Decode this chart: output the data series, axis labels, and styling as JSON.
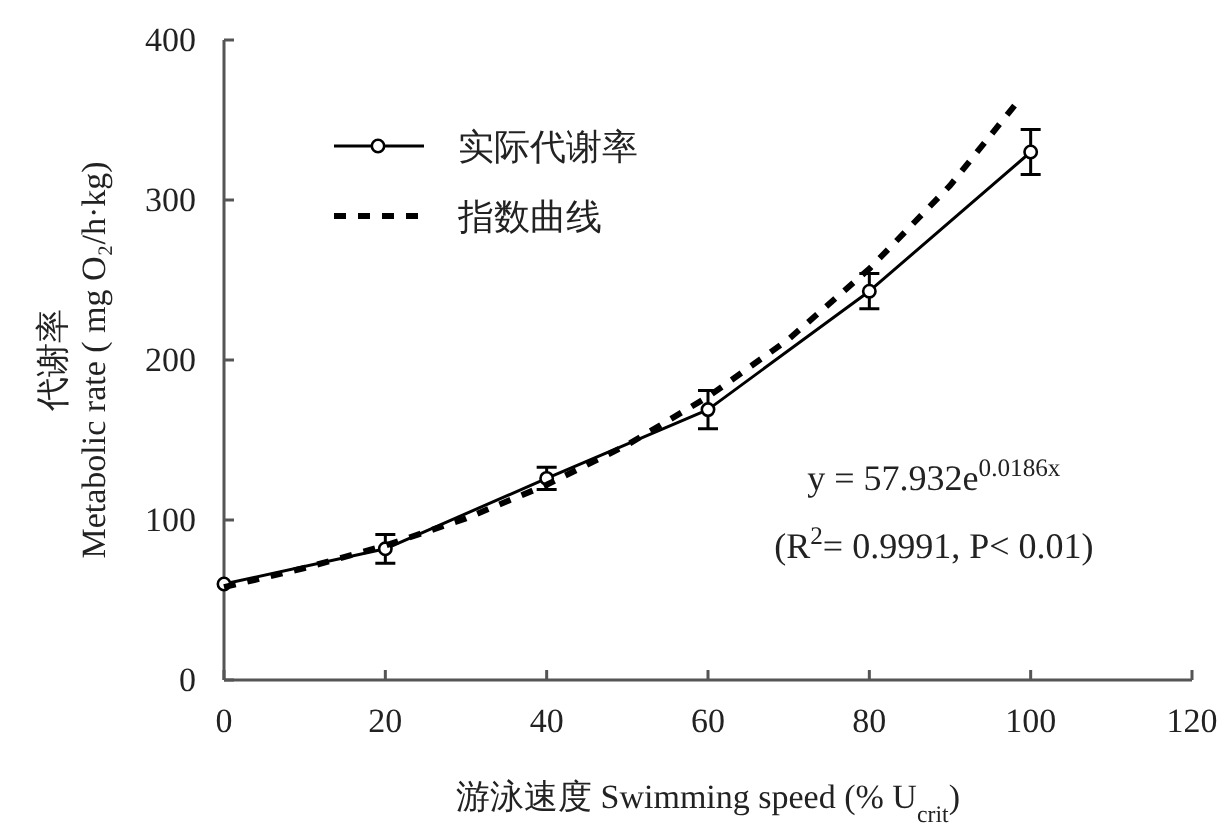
{
  "chart_data": {
    "type": "line",
    "xlabel": "游泳速度 Swimming speed (% U$_{crit}$)",
    "ylabel": "代谢率\nMetabolic rate ( mg O₂/h·kg)",
    "xlim": [
      0,
      120
    ],
    "xticks": [
      0,
      20,
      40,
      60,
      80,
      100,
      120
    ],
    "ylim": [
      0,
      400
    ],
    "yticks": [
      0,
      100,
      200,
      300,
      400
    ],
    "grid": false,
    "legend": "top left",
    "annotations": [
      "y = 57.932e$^{0.0186x}$",
      "(R$^{2}$= 0.9991, P< 0.01)"
    ],
    "series": [
      {
        "name": "实际代谢率",
        "color": "#000000",
        "marker": "circle",
        "line_style": "solid",
        "x": [
          0,
          20,
          40,
          60,
          80,
          100
        ],
        "values": [
          60,
          82,
          126,
          169,
          243,
          330
        ],
        "errors": [
          null,
          9,
          7,
          12,
          11,
          14
        ]
      },
      {
        "name": "指数曲线",
        "color": "#000000",
        "marker": "none",
        "line_style": "dashed",
        "x": [
          0,
          10,
          20,
          30,
          40,
          50,
          60,
          70,
          80,
          90,
          98
        ],
        "values": [
          58,
          70,
          84,
          101,
          122,
          147,
          177,
          213,
          257,
          309,
          359
        ]
      }
    ]
  }
}
